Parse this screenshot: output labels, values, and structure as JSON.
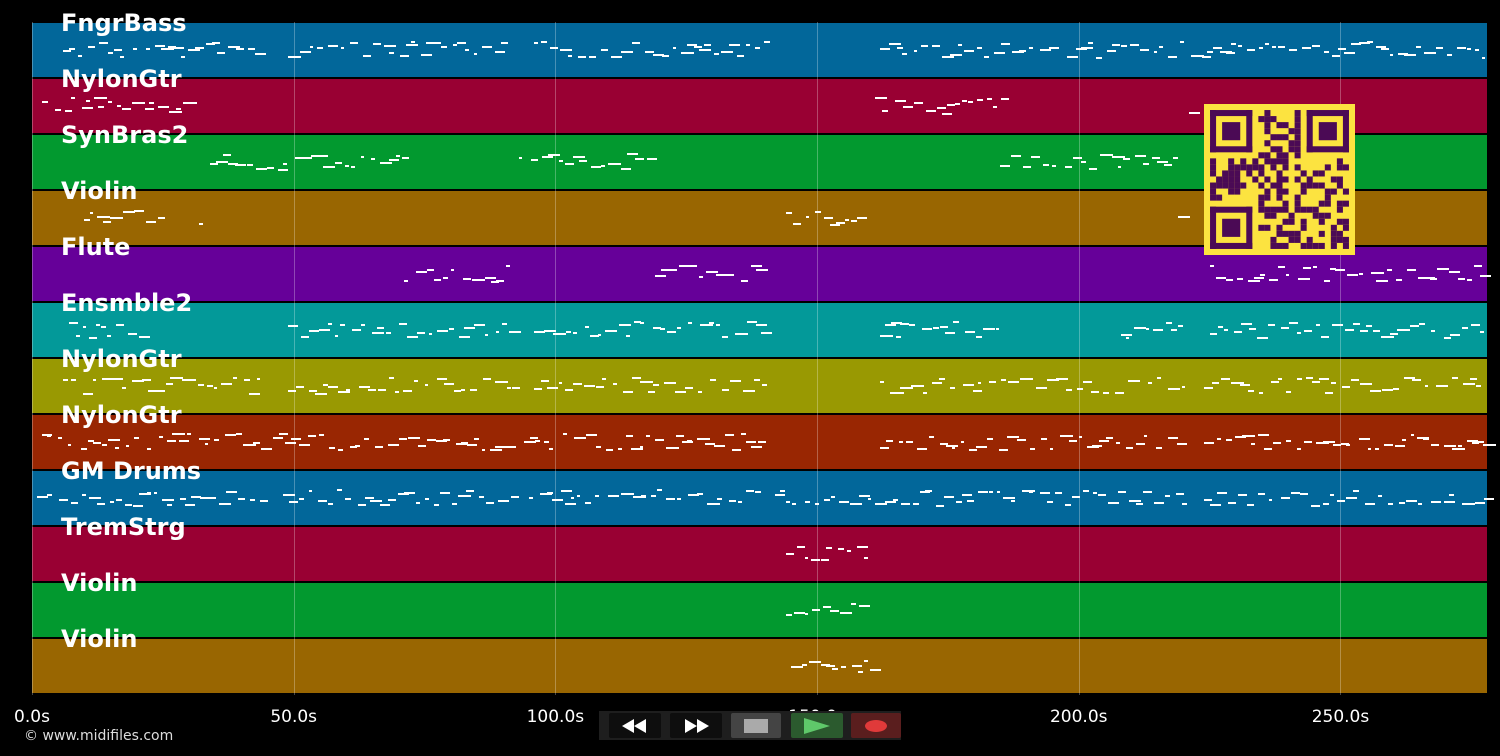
{
  "tracks": [
    {
      "name": "FngrBass",
      "color": "#02679a"
    },
    {
      "name": "NylonGtr",
      "color": "#990033"
    },
    {
      "name": "SynBras2",
      "color": "#02992f"
    },
    {
      "name": "Violin",
      "color": "#996601"
    },
    {
      "name": "Flute",
      "color": "#660099"
    },
    {
      "name": "Ensmble2",
      "color": "#039999"
    },
    {
      "name": "NylonGtr",
      "color": "#999902"
    },
    {
      "name": "NylonGtr",
      "color": "#992602"
    },
    {
      "name": "GM Drums",
      "color": "#02679a"
    },
    {
      "name": "TremStrg",
      "color": "#990033"
    },
    {
      "name": "Violin",
      "color": "#02992f"
    },
    {
      "name": "Violin",
      "color": "#996601"
    }
  ],
  "timeline": {
    "max_seconds": 278,
    "ticks": [
      "0.0s",
      "50.0s",
      "100.0s",
      "150.0s",
      "200.0s",
      "250.0s"
    ],
    "tick_values": [
      0,
      50,
      100,
      150,
      200,
      250
    ]
  },
  "transport": {
    "rewind": "rewind-icon",
    "fast_forward": "fast-forward-icon",
    "stop": "stop-icon",
    "play": "play-icon",
    "record": "record-icon",
    "play_color": "#5fc86a",
    "record_color": "#e03a3a"
  },
  "copyright": "© www.midifiles.com"
}
